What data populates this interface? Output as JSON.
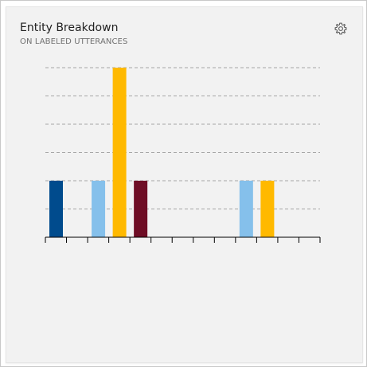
{
  "card": {
    "title": "Entity Breakdown",
    "subtitle": "ON LABELED UTTERANCES",
    "settings_icon": "gear-icon"
  },
  "chart_data": {
    "type": "bar",
    "title": "",
    "xlabel": "",
    "ylabel": "",
    "ylim": [
      0,
      6
    ],
    "grid": true,
    "values": [
      2,
      0,
      2,
      6,
      2,
      0,
      0,
      0,
      0,
      2,
      2,
      0,
      0
    ],
    "colors": [
      "#004b8d",
      "#004b8d",
      "#85c0eb",
      "#ffb900",
      "#6e0d25",
      "#85c0eb",
      "#85c0eb",
      "#85c0eb",
      "#85c0eb",
      "#85c0eb",
      "#ffb900",
      "#85c0eb",
      "#85c0eb"
    ]
  }
}
